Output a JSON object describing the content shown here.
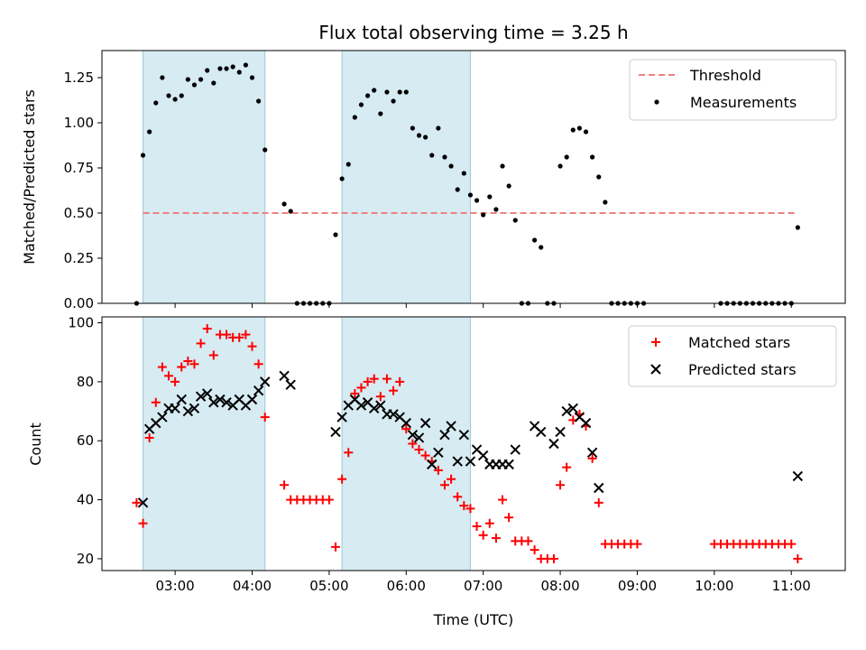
{
  "chart_data": [
    {
      "type": "scatter",
      "title": "Flux total observing time = 3.25 h",
      "ylabel": "Matched/Predicted stars",
      "xlabel": "",
      "ylim": [
        0,
        1.4
      ],
      "yticks": [
        0,
        0.25,
        0.5,
        0.75,
        1.0,
        1.25
      ],
      "ytick_labels": [
        "0.00",
        "0.25",
        "0.50",
        "0.75",
        "1.00",
        "1.25"
      ],
      "xlim_hours": [
        2.05,
        11.7
      ],
      "legend_position": "top-right",
      "shaded_intervals": [
        {
          "start": "02:35",
          "end": "04:10"
        },
        {
          "start": "05:10",
          "end": "06:50"
        }
      ],
      "threshold": {
        "name": "Threshold",
        "value": 0.5,
        "x_start": "02:35",
        "x_end": "11:05",
        "color": "#f08080",
        "style": "dashed"
      },
      "series": [
        {
          "name": "Measurements",
          "marker": "dot",
          "color": "#000000",
          "points": [
            [
              "02:30",
              0.0
            ],
            [
              "02:35",
              0.82
            ],
            [
              "02:40",
              0.95
            ],
            [
              "02:45",
              1.11
            ],
            [
              "02:50",
              1.25
            ],
            [
              "02:55",
              1.15
            ],
            [
              "03:00",
              1.13
            ],
            [
              "03:05",
              1.15
            ],
            [
              "03:10",
              1.24
            ],
            [
              "03:15",
              1.21
            ],
            [
              "03:20",
              1.24
            ],
            [
              "03:25",
              1.29
            ],
            [
              "03:30",
              1.22
            ],
            [
              "03:35",
              1.3
            ],
            [
              "03:40",
              1.3
            ],
            [
              "03:45",
              1.31
            ],
            [
              "03:50",
              1.28
            ],
            [
              "03:55",
              1.32
            ],
            [
              "04:00",
              1.25
            ],
            [
              "04:05",
              1.12
            ],
            [
              "04:10",
              0.85
            ],
            [
              "04:25",
              0.55
            ],
            [
              "04:30",
              0.51
            ],
            [
              "04:35",
              0.0
            ],
            [
              "04:40",
              0.0
            ],
            [
              "04:45",
              0.0
            ],
            [
              "04:50",
              0.0
            ],
            [
              "04:55",
              0.0
            ],
            [
              "05:00",
              0.0
            ],
            [
              "05:05",
              0.38
            ],
            [
              "05:10",
              0.69
            ],
            [
              "05:15",
              0.77
            ],
            [
              "05:20",
              1.03
            ],
            [
              "05:25",
              1.1
            ],
            [
              "05:30",
              1.15
            ],
            [
              "05:35",
              1.18
            ],
            [
              "05:40",
              1.05
            ],
            [
              "05:45",
              1.17
            ],
            [
              "05:50",
              1.12
            ],
            [
              "05:55",
              1.17
            ],
            [
              "06:00",
              1.17
            ],
            [
              "06:05",
              0.97
            ],
            [
              "06:10",
              0.93
            ],
            [
              "06:15",
              0.92
            ],
            [
              "06:20",
              0.82
            ],
            [
              "06:25",
              0.97
            ],
            [
              "06:30",
              0.81
            ],
            [
              "06:35",
              0.76
            ],
            [
              "06:40",
              0.63
            ],
            [
              "06:45",
              0.72
            ],
            [
              "06:50",
              0.6
            ],
            [
              "06:55",
              0.57
            ],
            [
              "07:00",
              0.49
            ],
            [
              "07:05",
              0.59
            ],
            [
              "07:10",
              0.52
            ],
            [
              "07:15",
              0.76
            ],
            [
              "07:20",
              0.65
            ],
            [
              "07:25",
              0.46
            ],
            [
              "07:30",
              0.0
            ],
            [
              "07:35",
              0.0
            ],
            [
              "07:40",
              0.35
            ],
            [
              "07:45",
              0.31
            ],
            [
              "07:50",
              0.0
            ],
            [
              "07:55",
              0.0
            ],
            [
              "08:00",
              0.76
            ],
            [
              "08:05",
              0.81
            ],
            [
              "08:10",
              0.96
            ],
            [
              "08:15",
              0.97
            ],
            [
              "08:20",
              0.95
            ],
            [
              "08:25",
              0.81
            ],
            [
              "08:30",
              0.7
            ],
            [
              "08:35",
              0.56
            ],
            [
              "08:40",
              0.0
            ],
            [
              "08:45",
              0.0
            ],
            [
              "08:50",
              0.0
            ],
            [
              "08:55",
              0.0
            ],
            [
              "09:00",
              0.0
            ],
            [
              "09:05",
              0.0
            ],
            [
              "10:05",
              0.0
            ],
            [
              "10:10",
              0.0
            ],
            [
              "10:15",
              0.0
            ],
            [
              "10:20",
              0.0
            ],
            [
              "10:25",
              0.0
            ],
            [
              "10:30",
              0.0
            ],
            [
              "10:35",
              0.0
            ],
            [
              "10:40",
              0.0
            ],
            [
              "10:45",
              0.0
            ],
            [
              "10:50",
              0.0
            ],
            [
              "10:55",
              0.0
            ],
            [
              "11:00",
              0.0
            ],
            [
              "11:05",
              0.42
            ]
          ]
        }
      ]
    },
    {
      "type": "scatter",
      "title": "",
      "ylabel": "Count",
      "xlabel": "Time (UTC)",
      "ylim": [
        16,
        102
      ],
      "yticks": [
        20,
        40,
        60,
        80,
        100
      ],
      "ytick_labels": [
        "20",
        "40",
        "60",
        "80",
        "100"
      ],
      "xticks": [
        "03:00",
        "04:00",
        "05:00",
        "06:00",
        "07:00",
        "08:00",
        "09:00",
        "10:00",
        "11:00"
      ],
      "xlim_hours": [
        2.05,
        11.7
      ],
      "legend_position": "top-right",
      "shaded_intervals": [
        {
          "start": "02:35",
          "end": "04:10"
        },
        {
          "start": "05:10",
          "end": "06:50"
        }
      ],
      "series": [
        {
          "name": "Matched stars",
          "marker": "plus",
          "color": "#ff0000",
          "points": [
            [
              "02:30",
              39
            ],
            [
              "02:35",
              32
            ],
            [
              "02:40",
              61
            ],
            [
              "02:45",
              73
            ],
            [
              "02:50",
              85
            ],
            [
              "02:55",
              82
            ],
            [
              "03:00",
              80
            ],
            [
              "03:05",
              85
            ],
            [
              "03:10",
              87
            ],
            [
              "03:15",
              86
            ],
            [
              "03:20",
              93
            ],
            [
              "03:25",
              98
            ],
            [
              "03:30",
              89
            ],
            [
              "03:35",
              96
            ],
            [
              "03:40",
              96
            ],
            [
              "03:45",
              95
            ],
            [
              "03:50",
              95
            ],
            [
              "03:55",
              96
            ],
            [
              "04:00",
              92
            ],
            [
              "04:05",
              86
            ],
            [
              "04:10",
              68
            ],
            [
              "04:25",
              45
            ],
            [
              "04:30",
              40
            ],
            [
              "04:35",
              40
            ],
            [
              "04:40",
              40
            ],
            [
              "04:45",
              40
            ],
            [
              "04:50",
              40
            ],
            [
              "04:55",
              40
            ],
            [
              "05:00",
              40
            ],
            [
              "05:05",
              24
            ],
            [
              "05:10",
              47
            ],
            [
              "05:15",
              56
            ],
            [
              "05:20",
              76
            ],
            [
              "05:25",
              78
            ],
            [
              "05:30",
              80
            ],
            [
              "05:35",
              81
            ],
            [
              "05:40",
              75
            ],
            [
              "05:45",
              81
            ],
            [
              "05:50",
              77
            ],
            [
              "05:55",
              80
            ],
            [
              "06:00",
              64
            ],
            [
              "06:05",
              59
            ],
            [
              "06:10",
              57
            ],
            [
              "06:15",
              55
            ],
            [
              "06:20",
              53
            ],
            [
              "06:25",
              50
            ],
            [
              "06:30",
              45
            ],
            [
              "06:35",
              47
            ],
            [
              "06:40",
              41
            ],
            [
              "06:45",
              38
            ],
            [
              "06:50",
              37
            ],
            [
              "06:55",
              31
            ],
            [
              "07:00",
              28
            ],
            [
              "07:05",
              32
            ],
            [
              "07:10",
              27
            ],
            [
              "07:15",
              40
            ],
            [
              "07:20",
              34
            ],
            [
              "07:25",
              26
            ],
            [
              "07:30",
              26
            ],
            [
              "07:35",
              26
            ],
            [
              "07:40",
              23
            ],
            [
              "07:45",
              20
            ],
            [
              "07:50",
              20
            ],
            [
              "07:55",
              20
            ],
            [
              "08:00",
              45
            ],
            [
              "08:05",
              51
            ],
            [
              "08:10",
              67
            ],
            [
              "08:15",
              69
            ],
            [
              "08:20",
              65
            ],
            [
              "08:25",
              54
            ],
            [
              "08:30",
              39
            ],
            [
              "08:35",
              25
            ],
            [
              "08:40",
              25
            ],
            [
              "08:45",
              25
            ],
            [
              "08:50",
              25
            ],
            [
              "08:55",
              25
            ],
            [
              "09:00",
              25
            ],
            [
              "10:00",
              25
            ],
            [
              "10:05",
              25
            ],
            [
              "10:10",
              25
            ],
            [
              "10:15",
              25
            ],
            [
              "10:20",
              25
            ],
            [
              "10:25",
              25
            ],
            [
              "10:30",
              25
            ],
            [
              "10:35",
              25
            ],
            [
              "10:40",
              25
            ],
            [
              "10:45",
              25
            ],
            [
              "10:50",
              25
            ],
            [
              "10:55",
              25
            ],
            [
              "11:00",
              25
            ],
            [
              "11:05",
              20
            ]
          ]
        },
        {
          "name": "Predicted stars",
          "marker": "x",
          "color": "#000000",
          "points": [
            [
              "02:35",
              39
            ],
            [
              "02:40",
              64
            ],
            [
              "02:45",
              66
            ],
            [
              "02:50",
              68
            ],
            [
              "02:55",
              71
            ],
            [
              "03:00",
              71
            ],
            [
              "03:05",
              74
            ],
            [
              "03:10",
              70
            ],
            [
              "03:15",
              71
            ],
            [
              "03:20",
              75
            ],
            [
              "03:25",
              76
            ],
            [
              "03:30",
              73
            ],
            [
              "03:35",
              74
            ],
            [
              "03:40",
              73
            ],
            [
              "03:45",
              72
            ],
            [
              "03:50",
              74
            ],
            [
              "03:55",
              72
            ],
            [
              "04:00",
              74
            ],
            [
              "04:05",
              77
            ],
            [
              "04:10",
              80
            ],
            [
              "04:25",
              82
            ],
            [
              "04:30",
              79
            ],
            [
              "05:05",
              63
            ],
            [
              "05:10",
              68
            ],
            [
              "05:15",
              72
            ],
            [
              "05:20",
              74
            ],
            [
              "05:25",
              72
            ],
            [
              "05:30",
              73
            ],
            [
              "05:35",
              71
            ],
            [
              "05:40",
              72
            ],
            [
              "05:45",
              69
            ],
            [
              "05:50",
              69
            ],
            [
              "05:55",
              68
            ],
            [
              "06:00",
              66
            ],
            [
              "06:05",
              62
            ],
            [
              "06:10",
              61
            ],
            [
              "06:15",
              66
            ],
            [
              "06:20",
              52
            ],
            [
              "06:25",
              56
            ],
            [
              "06:30",
              62
            ],
            [
              "06:35",
              65
            ],
            [
              "06:40",
              53
            ],
            [
              "06:45",
              62
            ],
            [
              "06:50",
              53
            ],
            [
              "06:55",
              57
            ],
            [
              "07:00",
              55
            ],
            [
              "07:05",
              52
            ],
            [
              "07:10",
              52
            ],
            [
              "07:15",
              52
            ],
            [
              "07:20",
              52
            ],
            [
              "07:25",
              57
            ],
            [
              "07:40",
              65
            ],
            [
              "07:45",
              63
            ],
            [
              "07:55",
              59
            ],
            [
              "08:00",
              63
            ],
            [
              "08:05",
              70
            ],
            [
              "08:10",
              71
            ],
            [
              "08:15",
              68
            ],
            [
              "08:20",
              66
            ],
            [
              "08:25",
              56
            ],
            [
              "08:30",
              44
            ],
            [
              "11:05",
              48
            ]
          ]
        }
      ]
    }
  ]
}
